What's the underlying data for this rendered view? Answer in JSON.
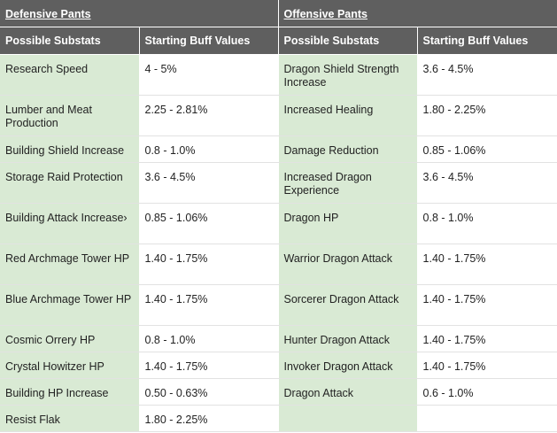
{
  "sections": {
    "defensive_title": "Defensive Pants",
    "offensive_title": "Offensive Pants"
  },
  "headers": {
    "substats": "Possible Substats",
    "buff_values": "Starting Buff Values"
  },
  "rows": [
    {
      "d_stat": "Research Speed",
      "d_val": "4 - 5%",
      "o_stat": "Dragon Shield Strength Increase",
      "o_val": "3.6 - 4.5%"
    },
    {
      "d_stat": "Lumber and Meat Production",
      "d_val": "2.25 - 2.81%",
      "o_stat": "Increased Healing",
      "o_val": "1.80 - 2.25%"
    },
    {
      "d_stat": "Building Shield Increase",
      "d_val": "0.8 - 1.0%",
      "o_stat": "Damage Reduction",
      "o_val": "0.85 - 1.06%"
    },
    {
      "d_stat": "Storage Raid Protection",
      "d_val": "3.6 - 4.5%",
      "o_stat": "Increased Dragon Experience",
      "o_val": "3.6 - 4.5%"
    },
    {
      "d_stat": "Building Attack Increase›",
      "d_val": "0.85 - 1.06%",
      "o_stat": "Dragon HP",
      "o_val": "0.8 - 1.0%"
    },
    {
      "d_stat": "Red Archmage Tower HP",
      "d_val": "1.40 - 1.75%",
      "o_stat": "Warrior Dragon Attack",
      "o_val": "1.40 - 1.75%"
    },
    {
      "d_stat": "Blue Archmage Tower HP",
      "d_val": "1.40 - 1.75%",
      "o_stat": "Sorcerer Dragon Attack",
      "o_val": "1.40 - 1.75%"
    },
    {
      "d_stat": "Cosmic Orrery HP",
      "d_val": "0.8 - 1.0%",
      "o_stat": "Hunter Dragon Attack",
      "o_val": "1.40 - 1.75%"
    },
    {
      "d_stat": "Crystal Howitzer HP",
      "d_val": "1.40 - 1.75%",
      "o_stat": "Invoker Dragon Attack",
      "o_val": "1.40 - 1.75%"
    },
    {
      "d_stat": "Building HP Increase",
      "d_val": "0.50 - 0.63%",
      "o_stat": "Dragon Attack",
      "o_val": "0.6 - 1.0%"
    },
    {
      "d_stat": "Resist Flak",
      "d_val": "1.80 - 2.25%",
      "o_stat": "",
      "o_val": ""
    }
  ]
}
